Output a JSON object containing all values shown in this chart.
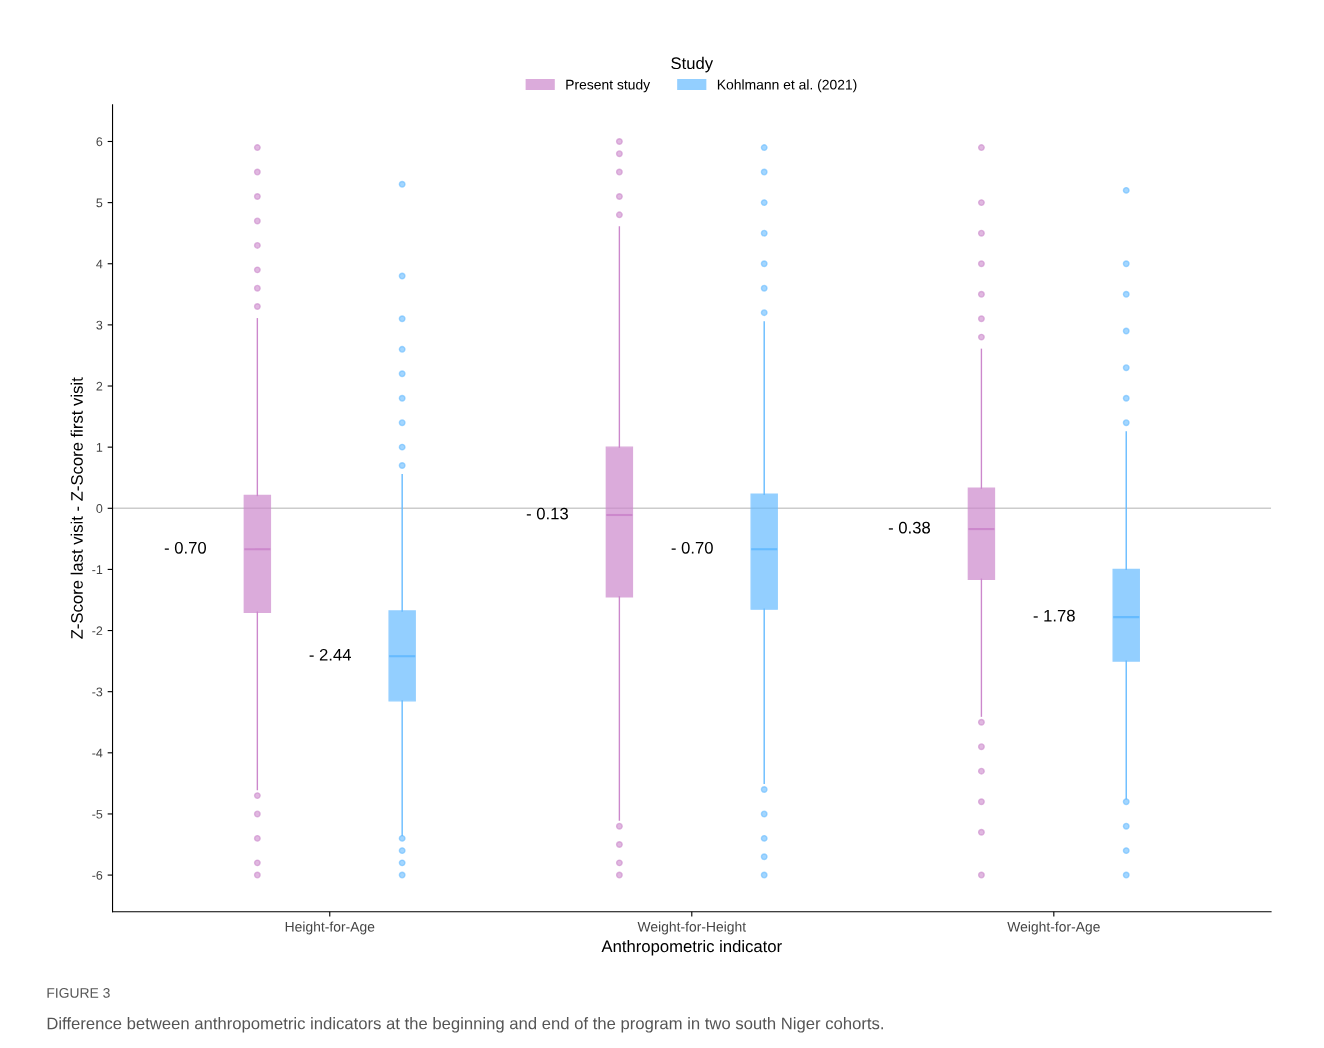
{
  "chart_data": {
    "type": "box",
    "xlabel": "Anthropometric indicator",
    "ylabel": "Z-Score last visit - Z-Score first visit",
    "legend_title": "Study",
    "legend": "top",
    "categories": [
      "Height-for-Age",
      "Weight-for-Height",
      "Weight-for-Age"
    ],
    "series": [
      {
        "name": "Present study",
        "color": "#cc88cc",
        "boxes": [
          {
            "low": -4.6,
            "q1": -1.7,
            "median": -0.67,
            "q3": 0.21,
            "high": 3.1,
            "outliers": [
              3.3,
              3.6,
              3.9,
              4.3,
              4.7,
              5.1,
              5.5,
              5.9,
              -4.7,
              -5.0,
              -5.4,
              -5.8,
              -6.0
            ]
          },
          {
            "low": -5.1,
            "q1": -1.45,
            "median": -0.11,
            "q3": 1.0,
            "high": 4.6,
            "outliers": [
              4.8,
              5.1,
              5.5,
              5.8,
              6.0,
              -5.2,
              -5.5,
              -5.8,
              -6.0
            ]
          },
          {
            "low": -3.4,
            "q1": -1.16,
            "median": -0.34,
            "q3": 0.33,
            "high": 2.6,
            "outliers": [
              2.8,
              3.1,
              3.5,
              4.0,
              4.5,
              5.0,
              5.9,
              -3.5,
              -3.9,
              -4.3,
              -4.8,
              -5.3,
              -6.0
            ]
          }
        ]
      },
      {
        "name": "Kohlmann et al. (2021)",
        "color": "#66bbff",
        "boxes": [
          {
            "low": -5.35,
            "q1": -3.15,
            "median": -2.42,
            "q3": -1.68,
            "high": 0.55,
            "outliers": [
              0.7,
              1.0,
              1.4,
              1.8,
              2.2,
              2.6,
              3.1,
              3.8,
              5.3,
              -5.4,
              -5.6,
              -5.8,
              -6.0
            ]
          },
          {
            "low": -4.5,
            "q1": -1.65,
            "median": -0.67,
            "q3": 0.23,
            "high": 3.05,
            "outliers": [
              3.2,
              3.6,
              4.0,
              4.5,
              5.0,
              5.5,
              5.9,
              -4.6,
              -5.0,
              -5.4,
              -5.7,
              -6.0
            ]
          },
          {
            "low": -4.75,
            "q1": -2.5,
            "median": -1.78,
            "q3": -1.0,
            "high": 1.25,
            "outliers": [
              1.4,
              1.8,
              2.3,
              2.9,
              3.5,
              4.0,
              5.2,
              -4.8,
              -5.2,
              -5.6,
              -6.0
            ]
          }
        ]
      }
    ],
    "ylim": [
      -6.6,
      6.6
    ],
    "yticks": [
      -6,
      -5,
      -4,
      -3,
      -2,
      -1,
      0,
      1,
      2,
      3,
      4,
      5,
      6
    ],
    "grid": false,
    "ref_lines": [
      {
        "axis": "y",
        "value": 0,
        "color": "#cccccc"
      }
    ],
    "annotations": [
      "- 0.70",
      "- 2.44",
      "- 0.13",
      "- 0.70",
      "- 0.38",
      "- 1.78",
      "FIGURE 3",
      "Difference between anthropometric indicators at the beginning and end of the program in two south Niger cohorts."
    ]
  }
}
